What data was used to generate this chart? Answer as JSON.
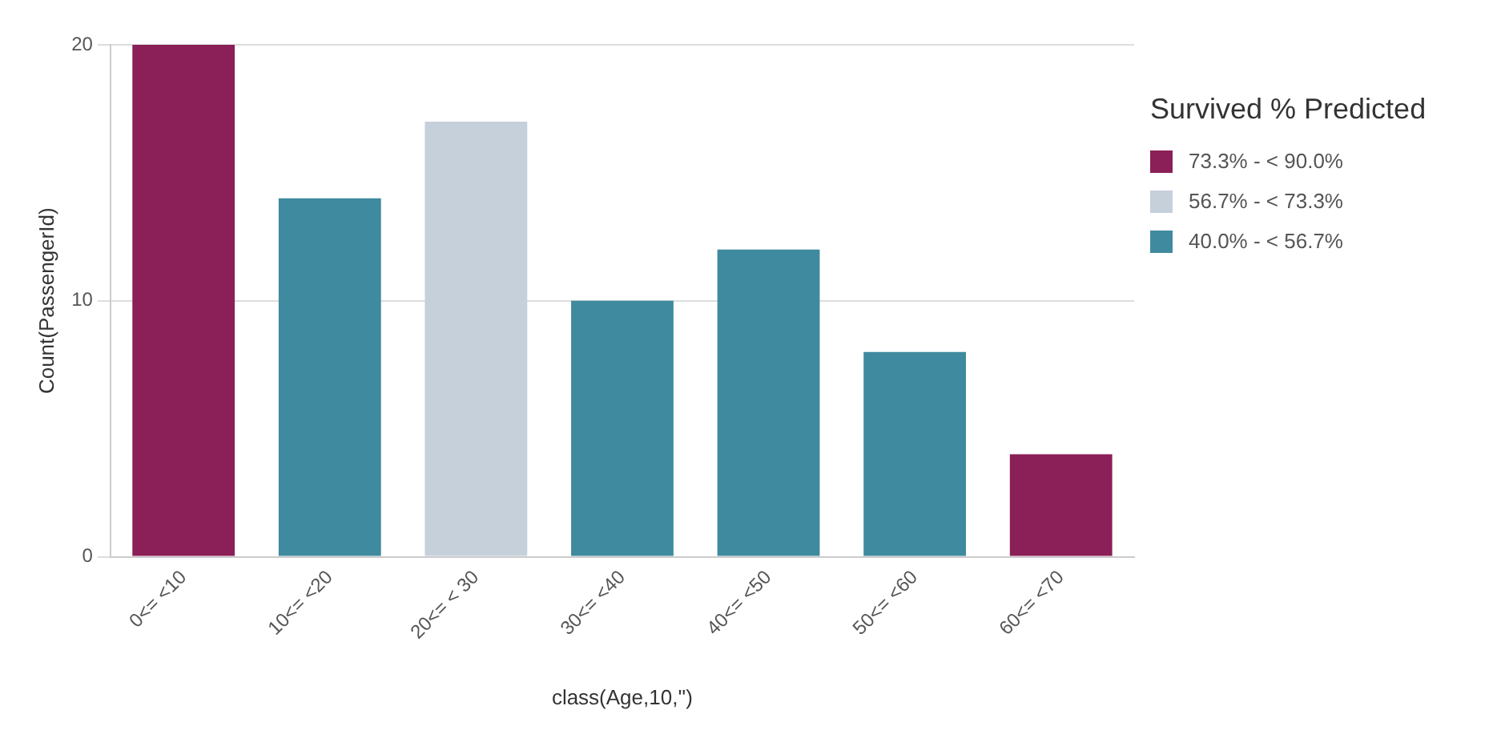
{
  "chart_data": {
    "type": "bar",
    "stacked": true,
    "xlabel": "class(Age,10,'')",
    "ylabel": "Count(PassengerId)",
    "legend_title": "Survived % Predicted",
    "categories": [
      "0<= <10",
      "10<= <20",
      "20<= < 30",
      "30<= <40",
      "40<= <50",
      "50<= <60",
      "60<= <70"
    ],
    "series": [
      {
        "name": "73.3% - < 90.0%",
        "color": "#8b1f57",
        "values": [
          20,
          null,
          null,
          null,
          null,
          null,
          4
        ]
      },
      {
        "name": "56.7% - < 73.3%",
        "color": "#c5d0db",
        "values": [
          null,
          null,
          17,
          null,
          null,
          null,
          null
        ]
      },
      {
        "name": "40.0% - < 56.7%",
        "color": "#3f8a9e",
        "values": [
          null,
          14,
          null,
          10,
          12,
          8,
          null
        ]
      }
    ],
    "ylim": [
      0,
      20
    ],
    "yticks": [
      0,
      10,
      20
    ],
    "grid": "y",
    "legend": "right"
  }
}
